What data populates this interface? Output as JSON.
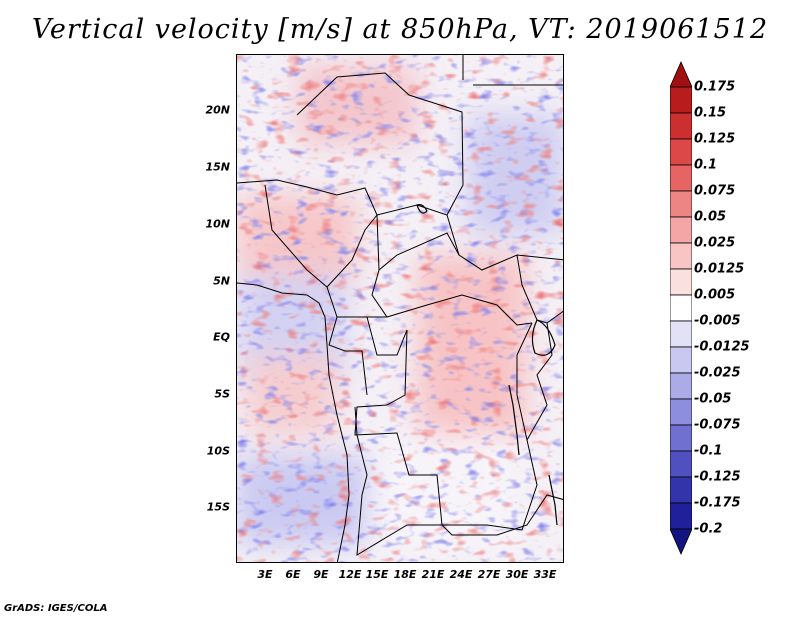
{
  "title": "Vertical velocity [m/s] at 850hPa, VT: 2019061512",
  "credit": "GrADS: IGES/COLA",
  "map": {
    "variable": "Vertical velocity",
    "units": "m/s",
    "level": "850hPa",
    "valid_time": "2019061512",
    "lat_labels": [
      "20N",
      "15N",
      "10N",
      "5N",
      "EQ",
      "5S",
      "10S",
      "15S"
    ],
    "lon_labels": [
      "3E",
      "6E",
      "9E",
      "12E",
      "15E",
      "18E",
      "21E",
      "24E",
      "27E",
      "30E",
      "33E"
    ]
  },
  "colorbar": {
    "labels": [
      "0.175",
      "0.15",
      "0.125",
      "0.1",
      "0.075",
      "0.05",
      "0.025",
      "0.0125",
      "0.005",
      "-0.005",
      "-0.0125",
      "-0.025",
      "-0.05",
      "-0.075",
      "-0.1",
      "-0.125",
      "-0.175",
      "-0.2"
    ],
    "colors": [
      "#a01010",
      "#b81c1c",
      "#cc2f2f",
      "#dc4848",
      "#e66464",
      "#ee8585",
      "#f4a5a5",
      "#f8c4c4",
      "#fbe0e0",
      "#ffffff",
      "#e2e2f6",
      "#c8c8f0",
      "#ababe8",
      "#8e8ede",
      "#7070d0",
      "#5050c0",
      "#3434aa",
      "#20209a",
      "#141480"
    ]
  }
}
